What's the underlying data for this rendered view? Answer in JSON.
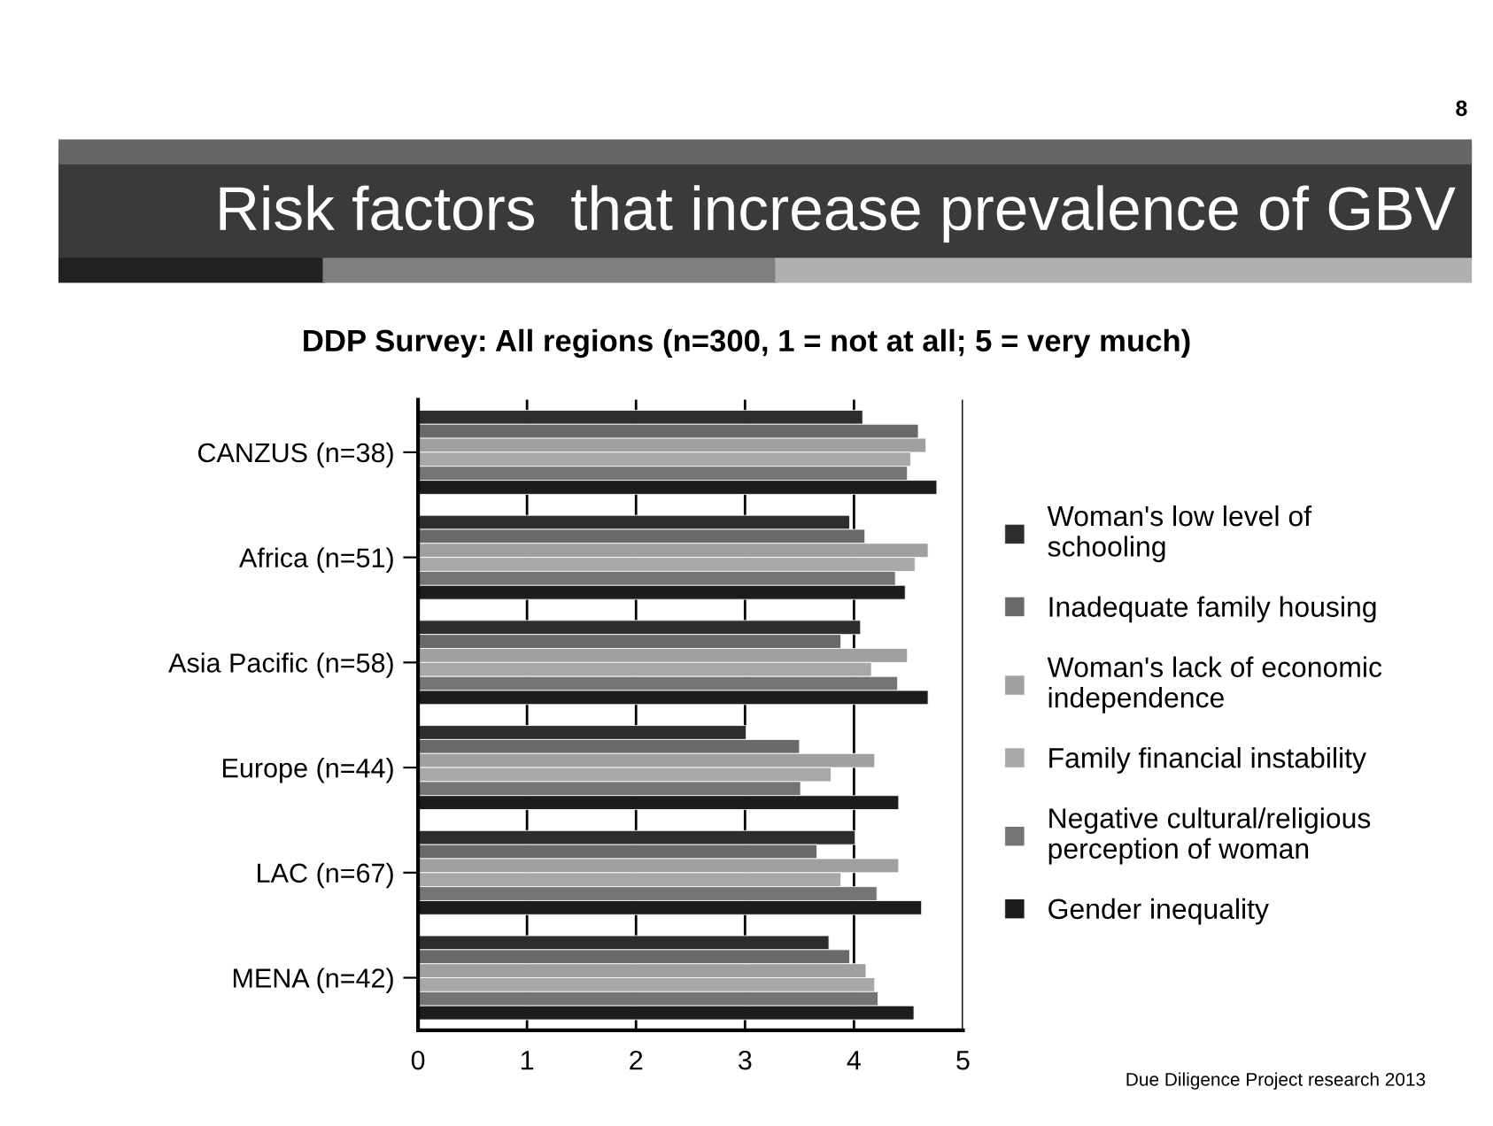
{
  "chart_data": {
    "type": "bar",
    "orientation": "horizontal",
    "title": "Risk factors  that increase prevalence of GBV",
    "subtitle": "DDP Survey: All regions (n=300, 1 = not at all; 5 = very much)",
    "categories": [
      "CANZUS (n=38)",
      "Africa (n=51)",
      "Asia Pacific (n=58)",
      "Europe (n=44)",
      "LAC (n=67)",
      "MENA (n=42)"
    ],
    "series": [
      {
        "name": "Woman's low level of schooling",
        "color": "#2d2d2d",
        "values": [
          4.08,
          3.96,
          4.06,
          3.01,
          4.01,
          3.77
        ]
      },
      {
        "name": "Inadequate family housing",
        "color": "#696969",
        "values": [
          4.59,
          4.1,
          3.88,
          3.5,
          3.66,
          3.96
        ]
      },
      {
        "name": "Woman's lack of economic independence",
        "color": "#a0a0a0",
        "values": [
          4.66,
          4.68,
          4.49,
          4.19,
          4.41,
          4.11
        ]
      },
      {
        "name": "Family financial instability",
        "color": "#a8a8a8",
        "values": [
          4.52,
          4.56,
          4.16,
          3.79,
          3.88,
          4.19
        ]
      },
      {
        "name": "Negative cultural/religious perception of woman",
        "color": "#747474",
        "values": [
          4.49,
          4.38,
          4.4,
          3.51,
          4.21,
          4.22
        ]
      },
      {
        "name": "Gender inequality",
        "color": "#1c1c1c",
        "values": [
          4.76,
          4.47,
          4.68,
          4.41,
          4.62,
          4.55
        ]
      }
    ],
    "xlim": [
      0,
      5
    ],
    "xticks": [
      0,
      1,
      2,
      3,
      4,
      5
    ],
    "grid": "x",
    "legend": "right",
    "annotations": [
      "8",
      "Due Diligence Project research 2013"
    ]
  }
}
